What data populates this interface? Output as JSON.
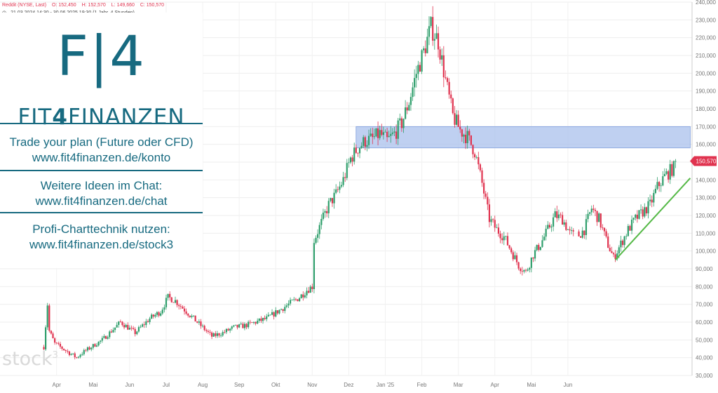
{
  "header": {
    "symbol": "Reddit (NYSE, Last)",
    "open": "O: 152,450",
    "high": "H: 152,570",
    "low": "L: 149,660",
    "close": "C: 150,570",
    "range": "21.03.2024 14:30 - 30.06.2025 19:30   (1 Jahr, 4 Stunden)"
  },
  "promo": {
    "logo_big": "F|4",
    "logo_small_a": "FIT",
    "logo_small_b": "4",
    "logo_small_c": "FINANZEN",
    "line1a": "Trade your plan (Future oder CFD)",
    "line1b": "www.fit4finanzen.de/konto",
    "line2a": "Weitere Ideen im Chat:",
    "line2b": "www.fit4finanzen.de/chat",
    "line3a": "Profi-Charttechnik nutzen:",
    "line3b": "www.fit4finanzen.de/stock3"
  },
  "watermark": "stock",
  "watermark_sup": "3",
  "colors": {
    "up": "#2e9e6b",
    "down": "#e0334f",
    "zone": "#a9c0ec",
    "trend": "#55b947",
    "axis": "#666666"
  },
  "chart_data": {
    "type": "candlestick",
    "title": "",
    "xlabel": "",
    "ylabel": "",
    "ylim": [
      30,
      240
    ],
    "yticks": [
      "240,000",
      "230,000",
      "220,000",
      "210,000",
      "200,000",
      "190,000",
      "180,000",
      "170,000",
      "160,000",
      "150,000",
      "140,000",
      "130,000",
      "120,000",
      "110,000",
      "100,000",
      "90,000",
      "80,000",
      "70,000",
      "60,000",
      "50,000",
      "40,000",
      "30,000"
    ],
    "xticks": [
      {
        "label": "Apr",
        "x": 0.35
      },
      {
        "label": "Mai",
        "x": 1.35
      },
      {
        "label": "Jun",
        "x": 2.35
      },
      {
        "label": "Jul",
        "x": 3.35
      },
      {
        "label": "Aug",
        "x": 4.35
      },
      {
        "label": "Sep",
        "x": 5.35
      },
      {
        "label": "Okt",
        "x": 6.35
      },
      {
        "label": "Nov",
        "x": 7.35
      },
      {
        "label": "Dez",
        "x": 8.35
      },
      {
        "label": "Jan '25",
        "x": 9.35
      },
      {
        "label": "Feb",
        "x": 10.35
      },
      {
        "label": "Mar",
        "x": 11.35
      },
      {
        "label": "Apr",
        "x": 12.35
      },
      {
        "label": "Mai",
        "x": 13.35
      },
      {
        "label": "Jun",
        "x": 14.35
      }
    ],
    "last_price": "150,570",
    "last_value": 150.57,
    "grid": true,
    "price_path": [
      [
        0.0,
        46
      ],
      [
        0.1,
        70
      ],
      [
        0.15,
        55
      ],
      [
        0.3,
        48
      ],
      [
        0.6,
        44
      ],
      [
        0.9,
        40
      ],
      [
        1.0,
        42
      ],
      [
        1.3,
        46
      ],
      [
        1.6,
        50
      ],
      [
        1.9,
        56
      ],
      [
        2.1,
        60
      ],
      [
        2.3,
        57
      ],
      [
        2.5,
        54
      ],
      [
        2.7,
        58
      ],
      [
        2.9,
        62
      ],
      [
        3.2,
        66
      ],
      [
        3.4,
        74
      ],
      [
        3.6,
        72
      ],
      [
        3.8,
        68
      ],
      [
        4.0,
        64
      ],
      [
        4.2,
        60
      ],
      [
        4.4,
        56
      ],
      [
        4.6,
        52
      ],
      [
        4.9,
        54
      ],
      [
        5.2,
        57
      ],
      [
        5.5,
        58
      ],
      [
        5.8,
        60
      ],
      [
        6.1,
        62
      ],
      [
        6.4,
        66
      ],
      [
        6.7,
        70
      ],
      [
        7.0,
        74
      ],
      [
        7.2,
        78
      ],
      [
        7.35,
        80
      ],
      [
        7.4,
        106
      ],
      [
        7.6,
        116
      ],
      [
        7.8,
        126
      ],
      [
        8.0,
        132
      ],
      [
        8.2,
        140
      ],
      [
        8.4,
        152
      ],
      [
        8.6,
        158
      ],
      [
        8.8,
        162
      ],
      [
        9.0,
        163
      ],
      [
        9.2,
        166
      ],
      [
        9.4,
        162
      ],
      [
        9.6,
        166
      ],
      [
        9.8,
        172
      ],
      [
        10.0,
        184
      ],
      [
        10.2,
        200
      ],
      [
        10.4,
        212
      ],
      [
        10.6,
        226
      ],
      [
        10.8,
        218
      ],
      [
        11.0,
        196
      ],
      [
        11.2,
        176
      ],
      [
        11.4,
        168
      ],
      [
        11.6,
        164
      ],
      [
        11.8,
        156
      ],
      [
        12.0,
        138
      ],
      [
        12.2,
        118
      ],
      [
        12.4,
        112
      ],
      [
        12.6,
        108
      ],
      [
        12.8,
        100
      ],
      [
        13.0,
        92
      ],
      [
        13.2,
        88
      ],
      [
        13.4,
        98
      ],
      [
        13.6,
        104
      ],
      [
        13.8,
        112
      ],
      [
        14.0,
        120
      ],
      [
        14.2,
        118
      ],
      [
        14.4,
        110
      ],
      [
        14.6,
        108
      ],
      [
        14.8,
        112
      ],
      [
        15.0,
        124
      ],
      [
        15.2,
        118
      ],
      [
        15.4,
        106
      ],
      [
        15.6,
        96
      ],
      [
        15.8,
        104
      ],
      [
        16.0,
        112
      ],
      [
        16.2,
        118
      ],
      [
        16.4,
        122
      ],
      [
        16.6,
        126
      ],
      [
        16.8,
        136
      ],
      [
        17.0,
        142
      ],
      [
        17.2,
        146
      ],
      [
        17.3,
        150.57
      ]
    ],
    "resistance_zone": {
      "from": 158,
      "to": 170,
      "x_start": 8.55,
      "x_end": 17.7
    },
    "trendline": {
      "x1": 15.65,
      "y1": 95,
      "x2": 17.7,
      "y2": 141
    },
    "x_range": [
      -1.2,
      17.75
    ]
  }
}
